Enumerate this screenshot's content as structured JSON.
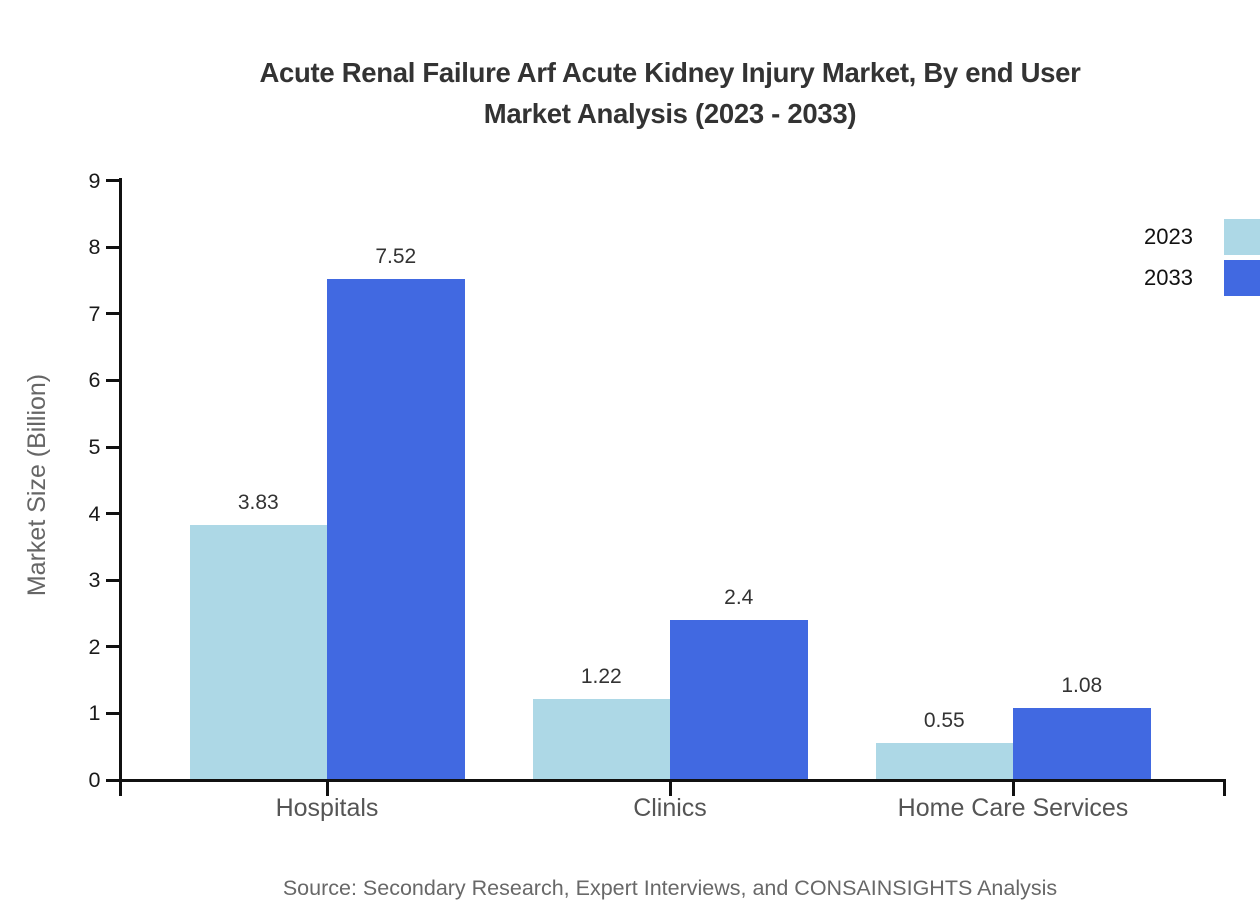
{
  "chart_data": {
    "type": "bar",
    "title": "Acute Renal Failure Arf Acute Kidney Injury Market, By end User Market Analysis (2023 - 2033)",
    "title_lines": [
      "Acute Renal Failure Arf Acute Kidney Injury Market, By end User",
      "Market Analysis (2023 - 2033)"
    ],
    "ylabel": "Market Size (Billion)",
    "xlabel": "",
    "categories": [
      "Hospitals",
      "Clinics",
      "Home Care Services"
    ],
    "series": [
      {
        "name": "2023",
        "color": "#ADD8E6",
        "values": [
          3.83,
          1.22,
          0.55
        ]
      },
      {
        "name": "2033",
        "color": "#4169E1",
        "values": [
          7.52,
          2.4,
          1.08
        ]
      }
    ],
    "value_labels": {
      "Hospitals": {
        "2023": "3.83",
        "2033": "7.52"
      },
      "Clinics": {
        "2023": "1.22",
        "2033": "2.4"
      },
      "Home Care Services": {
        "2023": "0.55",
        "2033": "1.08"
      }
    },
    "ylim": [
      0,
      9
    ],
    "yticks": [
      0,
      1,
      2,
      3,
      4,
      5,
      6,
      7,
      8,
      9
    ],
    "grid": false,
    "legend_position": "top-right",
    "axis_color": "#111111"
  },
  "footer": {
    "source": "Source: Secondary Research, Expert Interviews, and CONSAINSIGHTS Analysis"
  }
}
